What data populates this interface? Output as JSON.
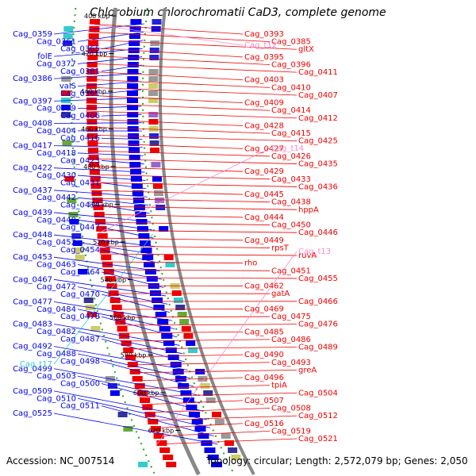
{
  "title": "Chlorobium chlorochromatii CaD3, complete genome",
  "footer": {
    "accession": "Accession: NC_007514",
    "topology": "Topology: circular; Length: 2,572,079 bp; Genes: 2,050"
  },
  "colors": {
    "forward": "#0000ee",
    "reverse": "#ee0000",
    "trna": "#33cccc",
    "rna_label": "#ff88cc",
    "axis": "#888888",
    "ticks": "#119911"
  },
  "scale_ticks": [
    "400 kbp",
    "420 kbp",
    "440 kbp",
    "460 kbp",
    "480 kbp",
    "500 kbp",
    "520 kbp",
    "540 kbp",
    "560 kbp",
    "580 kbp",
    "600 kbp",
    "620 kbp"
  ],
  "left_labels": [
    "Cag_0359",
    "Cag_0361",
    "Cag_0365",
    "folE",
    "Cag_0377",
    "Cag_0381",
    "Cag_0386",
    "valS",
    "Cag_0391",
    "Cag_0397",
    "Cag_0399",
    "Cag_0406",
    "Cag_0408",
    "Cag_0404",
    "Cag_0416",
    "Cag_0417",
    "Cag_0418",
    "Cag_0423",
    "Cag_0422",
    "Cag_0430",
    "Cag_0431",
    "Cag_0437",
    "Cag_0442",
    "Cag_0434",
    "Cag_0439",
    "Cag_0440",
    "Cag_0447",
    "Cag_0448",
    "Cag_0452",
    "Cag_0454",
    "Cag_0453",
    "Cag_0463",
    "Cag_0464",
    "Cag_0467",
    "Cag_0472",
    "Cag_0470",
    "Cag_0477",
    "Cag_0484",
    "Cag_0478",
    "Cag_0483",
    "Cag_0482",
    "Cag_0487",
    "Cag_0492",
    "Cag_0488",
    "Cag_0498",
    "Cag_0499",
    "Cag_0503",
    "Cag_0500",
    "Cag_0509",
    "Cag_0510",
    "Cag_0511",
    "Cag_0525"
  ],
  "left_rna_labels": [
    "Cag_t17"
  ],
  "right_labels": [
    "Cag_0393",
    "Cag_0385",
    "gltX",
    "Cag_0395",
    "Cag_0396",
    "Cag_0411",
    "Cag_0403",
    "Cag_0410",
    "Cag_0407",
    "Cag_0409",
    "Cag_0414",
    "Cag_0412",
    "Cag_0428",
    "Cag_0415",
    "Cag_0425",
    "Cag_0427",
    "Cag_0426",
    "Cag_0435",
    "Cag_0429",
    "Cag_0433",
    "Cag_0436",
    "Cag_0445",
    "Cag_0438",
    "hppA",
    "Cag_0444",
    "Cag_0450",
    "Cag_0446",
    "Cag_0449",
    "rpsT",
    "ruvA",
    "rho",
    "Cag_0451",
    "Cag_0455",
    "Cag_0462",
    "gatA",
    "Cag_0466",
    "Cag_0469",
    "Cag_0475",
    "Cag_0476",
    "Cag_0485",
    "Cag_0486",
    "Cag_0489",
    "Cag_0490",
    "Cag_0493",
    "greA",
    "Cag_0496",
    "tpiA",
    "Cag_0504",
    "Cag_0507",
    "Cag_0508",
    "Cag_0512",
    "Cag_0516",
    "Cag_0519",
    "Cag_0521"
  ],
  "right_rna_labels": [
    "Cag_t12",
    "Cag_t14",
    "Cag_t13"
  ]
}
